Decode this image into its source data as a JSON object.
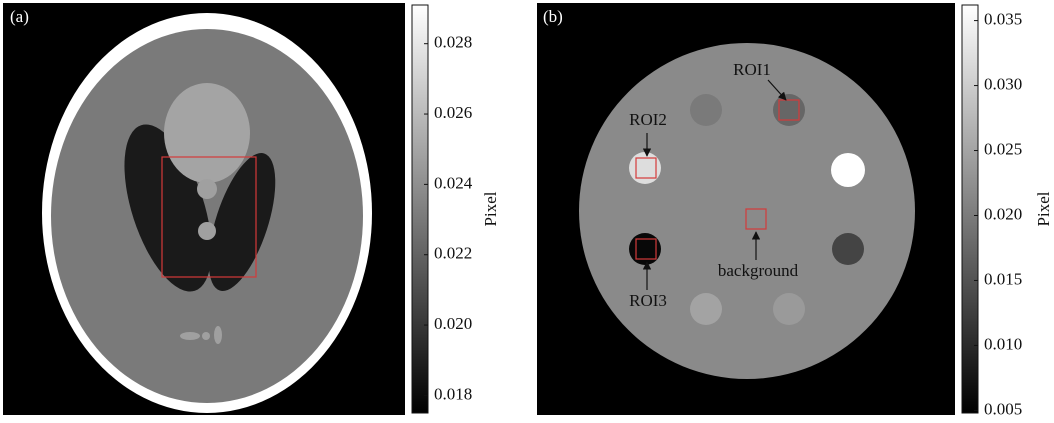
{
  "chart_data": [
    {
      "type": "image",
      "panel_label": "(a)",
      "colorbar_label": "Pixel",
      "clim": [
        0.0175,
        0.0291
      ],
      "cticks": [
        0.018,
        {
          "value": 0.02,
          "label": "0.020"
        },
        0.022,
        0.024,
        0.026,
        0.028
      ],
      "annotations": []
    },
    {
      "type": "image",
      "panel_label": "(b)",
      "colorbar_label": "Pixel",
      "clim": [
        0.0048,
        0.0362
      ],
      "cticks": [
        0.005,
        {
          "value": 0.01,
          "label": "0.010"
        },
        0.015,
        {
          "value": 0.02,
          "label": "0.020"
        },
        0.025,
        {
          "value": 0.03,
          "label": "0.030"
        },
        0.035
      ],
      "annotations": [
        "ROI1",
        "ROI2",
        "ROI3",
        "background"
      ]
    }
  ]
}
